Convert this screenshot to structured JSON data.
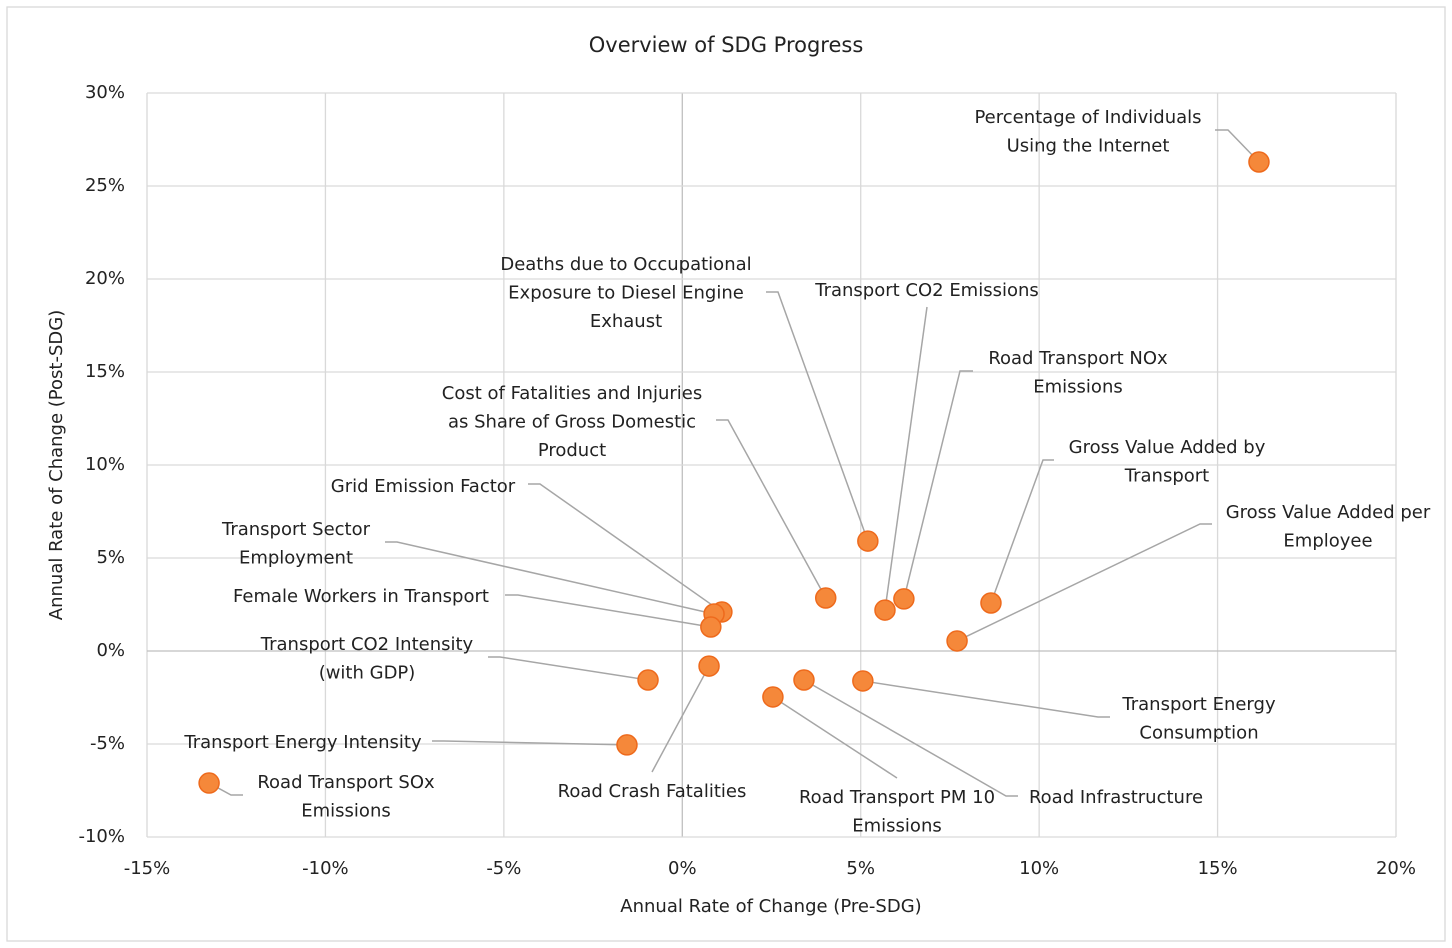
{
  "chart_data": {
    "type": "scatter",
    "title": "Overview of SDG Progress",
    "x_label": "Annual Rate of Change (Pre-SDG)",
    "y_label": "Annual Rate of Change (Post-SDG)",
    "x": [
      16.16,
      5.2,
      5.68,
      6.21,
      4.02,
      8.65,
      7.7,
      1.11,
      0.89,
      0.8,
      -0.96,
      0.75,
      2.54,
      3.41,
      5.06,
      -1.55,
      -13.26
    ],
    "values": [
      26.29,
      5.91,
      2.2,
      2.8,
      2.85,
      2.58,
      0.54,
      2.1,
      1.99,
      1.29,
      -1.56,
      -0.81,
      -2.47,
      -1.56,
      -1.61,
      -5.05,
      -7.1
    ],
    "labels": [
      [
        "Percentage of Individuals",
        "Using the Internet"
      ],
      [
        "Deaths due to Occupational",
        "Exposure to Diesel Engine",
        "Exhaust"
      ],
      [
        "Transport CO2 Emissions"
      ],
      [
        "Road Transport NOx",
        "Emissions"
      ],
      [
        "Cost of Fatalities and Injuries",
        "as Share of Gross Domestic",
        "Product"
      ],
      [
        "Gross Value Added by",
        "Transport"
      ],
      [
        "Gross Value Added per",
        "Employee"
      ],
      [
        "Grid Emission Factor"
      ],
      [
        "Transport Sector",
        "Employment"
      ],
      [
        "Female Workers in Transport"
      ],
      [
        "Transport CO2 Intensity",
        "(with GDP)"
      ],
      [
        "Road Crash Fatalities"
      ],
      [
        "Road Transport PM 10",
        "Emissions"
      ],
      [
        "Road Infrastructure"
      ],
      [
        "Transport Energy",
        "Consumption"
      ],
      [
        "Transport Energy Intensity"
      ],
      [
        "Road Transport SOx",
        "Emissions"
      ]
    ],
    "color": "#f5883a",
    "edge_color": "#ee6a1c",
    "xlim": [
      -15,
      20
    ],
    "xticks": [
      {
        "value": -15,
        "label": "-15%"
      },
      {
        "value": -10,
        "label": "-10%"
      },
      {
        "value": -5,
        "label": "-5%"
      },
      {
        "value": 0,
        "label": "0%"
      },
      {
        "value": 5,
        "label": "5%"
      },
      {
        "value": 10,
        "label": "10%"
      },
      {
        "value": 15,
        "label": "15%"
      },
      {
        "value": 20,
        "label": "20%"
      }
    ],
    "ylim": [
      -10,
      30
    ],
    "yticks": [
      {
        "value": -10,
        "label": "-10%"
      },
      {
        "value": -5,
        "label": "-5%"
      },
      {
        "value": 0,
        "label": "0%"
      },
      {
        "value": 5,
        "label": "5%"
      },
      {
        "value": 10,
        "label": "10%"
      },
      {
        "value": 15,
        "label": "15%"
      },
      {
        "value": 20,
        "label": "20%"
      },
      {
        "value": 25,
        "label": "25%"
      },
      {
        "value": 30,
        "label": "30%"
      }
    ],
    "grid": true
  }
}
